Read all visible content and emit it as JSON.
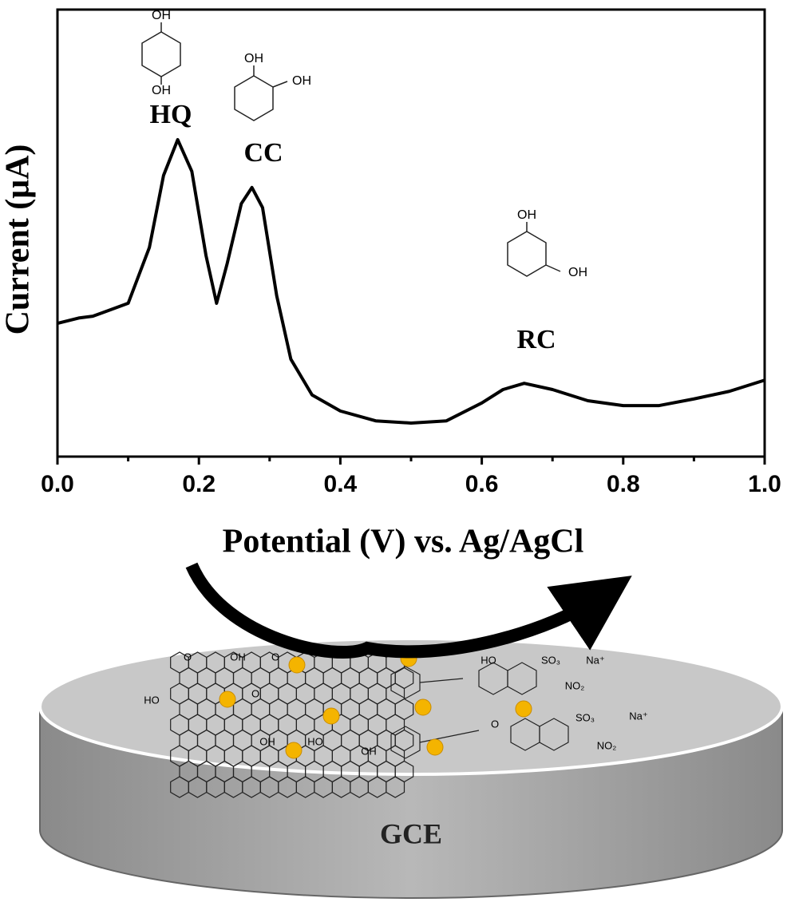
{
  "chart_data": {
    "type": "line",
    "x_label": "Potential (V) vs. Ag/AgCl",
    "y_label": "Current (μA)",
    "x": [
      0,
      0.03,
      0.05,
      0.1,
      0.13,
      0.15,
      0.17,
      0.19,
      0.21,
      0.225,
      0.24,
      0.26,
      0.275,
      0.29,
      0.31,
      0.33,
      0.36,
      0.4,
      0.45,
      0.5,
      0.55,
      0.6,
      0.63,
      0.66,
      0.7,
      0.75,
      0.8,
      0.85,
      0.9,
      0.95,
      1.0
    ],
    "series": [
      {
        "color": "#000000",
        "values": [
          29.8,
          31,
          31.4,
          34.3,
          46.8,
          62.9,
          70.9,
          63.8,
          45,
          34.3,
          43.2,
          56.6,
          60.2,
          55.7,
          36,
          21.8,
          13.8,
          10.2,
          8,
          7.5,
          8,
          12,
          15,
          16.4,
          15,
          12.5,
          11.4,
          11.4,
          12.9,
          14.6,
          17.1
        ]
      }
    ],
    "xlim": [
      0,
      1.0
    ],
    "xticks": [
      {
        "value": 0,
        "label": "0.0"
      },
      0.2,
      0.4,
      0.6,
      0.8,
      {
        "value": 1.0,
        "label": "1.0"
      }
    ],
    "xminorticks": [
      0.1,
      0.3,
      0.5,
      0.7,
      0.9
    ],
    "ylim": [
      0,
      100
    ],
    "annotations": [
      {
        "text": "HQ",
        "substituents": [
          "OH",
          "OH"
        ]
      },
      {
        "text": "CC",
        "substituents": [
          "OH",
          "OH"
        ]
      },
      {
        "text": "RC",
        "substituents": [
          "OH",
          "OH"
        ]
      }
    ]
  },
  "diagram": {
    "label": "GCE",
    "texts": [
      "O",
      "OH",
      "O",
      "HO",
      "O",
      "HO",
      "SO₃",
      "Na⁺",
      "NO₂",
      "O",
      "SO₃",
      "Na⁺",
      "NO₂",
      "OH",
      "HO",
      "OH"
    ]
  }
}
